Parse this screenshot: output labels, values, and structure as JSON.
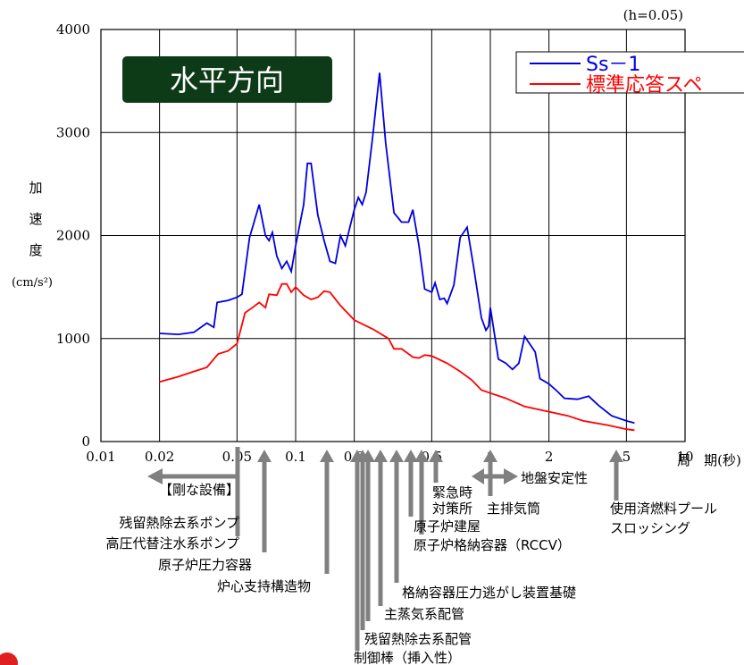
{
  "chart_data": {
    "type": "line",
    "log_x": true,
    "grid": true,
    "title": "水平方向",
    "note": "(h=0.05)",
    "y_label": [
      "加",
      "速",
      "度",
      "(cm/s²)"
    ],
    "x_label": "周　期(秒)",
    "xlim": [
      0.01,
      10
    ],
    "ylim": [
      0,
      4000
    ],
    "xticks": [
      0.01,
      0.02,
      0.05,
      0.1,
      0.2,
      0.5,
      1,
      2,
      5,
      10
    ],
    "yticks": [
      0,
      1000,
      2000,
      3000,
      4000
    ],
    "legend": "top-right",
    "series": [
      {
        "name": "Ss－1",
        "color": "#0000e0",
        "x": [
          0.02,
          0.025,
          0.03,
          0.035,
          0.038,
          0.0395,
          0.045,
          0.05,
          0.053,
          0.058,
          0.065,
          0.07,
          0.073,
          0.076,
          0.08,
          0.085,
          0.09,
          0.095,
          0.1,
          0.11,
          0.115,
          0.12,
          0.13,
          0.14,
          0.15,
          0.16,
          0.17,
          0.18,
          0.2,
          0.21,
          0.22,
          0.23,
          0.25,
          0.27,
          0.29,
          0.32,
          0.35,
          0.38,
          0.4,
          0.43,
          0.46,
          0.5,
          0.52,
          0.55,
          0.58,
          0.6,
          0.65,
          0.7,
          0.76,
          0.82,
          0.9,
          0.95,
          0.98,
          1.0,
          1.1,
          1.2,
          1.3,
          1.4,
          1.5,
          1.7,
          1.8,
          2.0,
          2.2,
          2.4,
          2.8,
          3.2,
          3.6,
          4.2,
          5.0,
          5.5
        ],
        "values": [
          1050,
          1040,
          1060,
          1150,
          1110,
          1350,
          1370,
          1400,
          1430,
          1980,
          2300,
          2000,
          1950,
          2030,
          1800,
          1680,
          1750,
          1650,
          1900,
          2300,
          2700,
          2700,
          2200,
          1950,
          1750,
          1730,
          2000,
          1900,
          2250,
          2370,
          2300,
          2420,
          3000,
          3580,
          2900,
          2220,
          2130,
          2130,
          2250,
          1900,
          1480,
          1450,
          1540,
          1380,
          1390,
          1340,
          1520,
          1980,
          2080,
          1700,
          1200,
          1080,
          1120,
          1300,
          800,
          760,
          700,
          760,
          1020,
          870,
          610,
          560,
          490,
          420,
          410,
          440,
          350,
          250,
          200,
          180
        ]
      },
      {
        "name": "標準応答スペ",
        "color": "#ff0000",
        "x": [
          0.02,
          0.025,
          0.03,
          0.035,
          0.04,
          0.045,
          0.05,
          0.055,
          0.06,
          0.065,
          0.07,
          0.073,
          0.08,
          0.085,
          0.09,
          0.095,
          0.1,
          0.11,
          0.12,
          0.13,
          0.14,
          0.15,
          0.17,
          0.2,
          0.25,
          0.3,
          0.32,
          0.35,
          0.4,
          0.43,
          0.46,
          0.5,
          0.6,
          0.7,
          0.8,
          0.9,
          1.0,
          1.2,
          1.5,
          2,
          2.5,
          3,
          4,
          5,
          5.5
        ],
        "values": [
          580,
          630,
          680,
          720,
          850,
          880,
          950,
          1250,
          1300,
          1350,
          1300,
          1430,
          1420,
          1530,
          1530,
          1450,
          1500,
          1420,
          1380,
          1400,
          1460,
          1450,
          1320,
          1180,
          1090,
          1000,
          900,
          900,
          820,
          810,
          840,
          830,
          760,
          680,
          600,
          500,
          470,
          420,
          340,
          290,
          250,
          200,
          160,
          120,
          110
        ]
      }
    ],
    "annotations": [
      "【剛な設備】",
      "残留熱除去系ポンプ",
      "高圧代替注水系ポンプ",
      "原子炉圧力容器",
      "炉心支持構造物",
      "格納容器圧力逃がし装置基礎",
      "主蒸気系配管",
      "残留熱除去系配管",
      "制御棒（挿入性）",
      "原子炉建屋",
      "原子炉格納容器（RCCV）",
      "緊急時",
      "対策所",
      "主排気筒",
      "地盤安定性",
      "使用済燃料プール",
      "スロッシング"
    ]
  }
}
